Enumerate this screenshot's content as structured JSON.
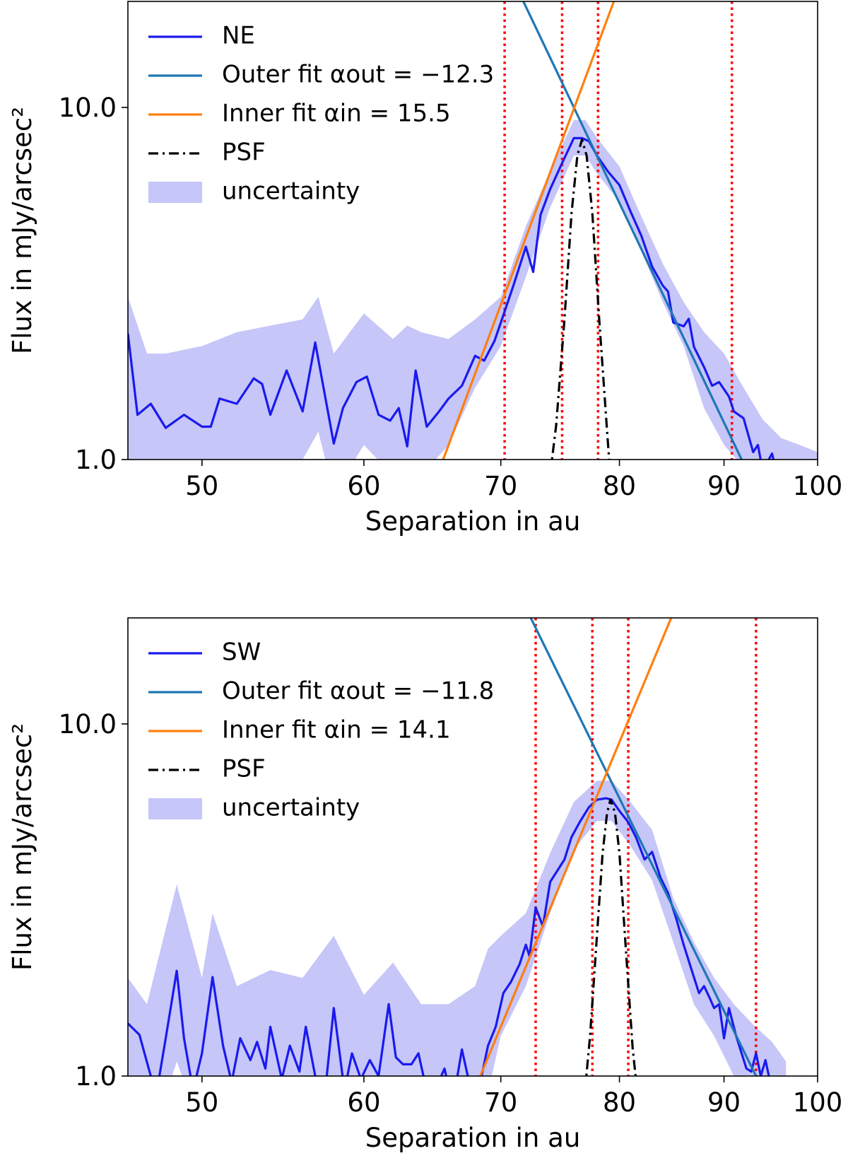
{
  "chart_data": [
    {
      "type": "line",
      "xlabel": "Separation in au",
      "ylabel": "Flux in mJy/arcsec²",
      "xscale": "log",
      "yscale": "log",
      "xlim": [
        46,
        100
      ],
      "ylim": [
        1,
        20
      ],
      "xticks": [
        50,
        60,
        70,
        80,
        90,
        100
      ],
      "yticks": [
        {
          "value": 1,
          "label": "1.0"
        },
        {
          "value": 10,
          "label": "10.0"
        }
      ],
      "legend": "upper left",
      "series": [
        {
          "name": "NE",
          "color": "#1a1aee",
          "linestyle": "solid",
          "x": [
            46.0,
            46.5,
            47.2,
            48.0,
            49.0,
            50.0,
            50.5,
            51.0,
            52.0,
            53.0,
            53.5,
            54.0,
            55.0,
            56.0,
            56.8,
            58.0,
            58.6,
            59.5,
            60.2,
            61.0,
            61.8,
            62.4,
            63.0,
            63.6,
            64.4,
            65.3,
            66.0,
            67.0,
            68.0,
            68.7,
            69.5,
            70.2,
            71.0,
            72.0,
            72.6,
            73.2,
            74.0,
            75.0,
            76.0,
            76.7,
            77.3,
            78.0,
            79.0,
            80.0,
            81.0,
            82.0,
            83.0,
            84.0,
            84.5,
            85.0,
            86.0,
            86.5,
            87.0,
            88.0,
            88.8,
            89.5,
            90.5,
            91.0,
            92.0,
            93.0,
            93.5,
            94.0,
            95.0,
            95.5,
            96.0
          ],
          "values": [
            2.28,
            1.34,
            1.44,
            1.23,
            1.34,
            1.24,
            1.24,
            1.49,
            1.44,
            1.7,
            1.64,
            1.34,
            1.79,
            1.37,
            2.15,
            1.11,
            1.4,
            1.66,
            1.72,
            1.34,
            1.29,
            1.4,
            1.09,
            1.79,
            1.24,
            1.37,
            1.49,
            1.62,
            1.97,
            1.91,
            2.17,
            2.57,
            3.12,
            4.02,
            3.41,
            4.95,
            5.86,
            6.95,
            8.18,
            8.18,
            8.02,
            7.3,
            6.56,
            6.02,
            5.07,
            4.32,
            3.53,
            3.12,
            3.0,
            2.45,
            2.39,
            2.51,
            2.09,
            1.83,
            1.62,
            1.66,
            1.51,
            1.37,
            1.31,
            1.05,
            1.1,
            0.93,
            1.04,
            0.91,
            0.99
          ]
        },
        {
          "name": "Outer fit αout = −12.3",
          "color": "#1f77b4",
          "linestyle": "solid",
          "x": [
            71.8,
            91.8
          ],
          "values": [
            20,
            1
          ]
        },
        {
          "name": "Inner fit αin = 15.5",
          "color": "#ff7f0e",
          "linestyle": "solid",
          "x": [
            65.6,
            79.5
          ],
          "values": [
            1,
            20
          ]
        },
        {
          "name": "PSF",
          "color": "#000000",
          "linestyle": "dashdot",
          "x": [
            73.8,
            74.5,
            75.2,
            75.8,
            76.3,
            76.7,
            77.1,
            77.6,
            78.2,
            78.9,
            79.3
          ],
          "values": [
            0.8,
            1.25,
            2.5,
            5.0,
            7.3,
            8.1,
            7.3,
            5.0,
            2.5,
            1.2,
            0.8
          ]
        },
        {
          "name": "uncertainty",
          "color": "#c6c6f8",
          "linestyle": "band",
          "x": [
            46,
            47,
            48,
            50,
            52,
            54,
            56,
            57,
            58,
            60,
            62,
            63,
            64,
            66,
            68,
            70,
            72,
            74,
            76,
            77,
            78,
            80,
            82,
            84,
            86,
            88,
            90,
            92,
            94,
            96,
            98,
            100
          ],
          "lower": [
            0.9,
            0.8,
            0.8,
            0.9,
            1.0,
            0.9,
            1.0,
            1.2,
            0.8,
            1.1,
            0.9,
            0.8,
            0.9,
            1.1,
            1.6,
            2.1,
            3.3,
            5.2,
            7.3,
            7.3,
            6.5,
            5.4,
            3.9,
            2.8,
            2.1,
            1.4,
            1.1,
            0.95,
            0.8,
            0.75,
            0.75,
            0.7
          ],
          "upper": [
            2.9,
            2.0,
            2.0,
            2.1,
            2.3,
            2.4,
            2.5,
            2.9,
            2.0,
            2.6,
            2.2,
            2.4,
            2.3,
            2.2,
            2.5,
            2.9,
            4.6,
            6.6,
            9.2,
            9.2,
            8.2,
            6.8,
            4.9,
            3.6,
            2.8,
            2.3,
            2.0,
            1.6,
            1.3,
            1.15,
            1.1,
            1.05
          ]
        }
      ],
      "vlines": {
        "color": "#ff0000",
        "x": [
          70.3,
          75.0,
          78.1,
          90.8
        ]
      }
    },
    {
      "type": "line",
      "xlabel": "Separation in au",
      "ylabel": "Flux in mJy/arcsec²",
      "xscale": "log",
      "yscale": "log",
      "xlim": [
        46,
        100
      ],
      "ylim": [
        1,
        20
      ],
      "xticks": [
        50,
        60,
        70,
        80,
        90,
        100
      ],
      "yticks": [
        {
          "value": 1,
          "label": "1.0"
        },
        {
          "value": 10,
          "label": "10.0"
        }
      ],
      "legend": "upper left",
      "series": [
        {
          "name": "SW",
          "color": "#1a1aee",
          "linestyle": "solid",
          "x": [
            46.0,
            46.6,
            47.2,
            47.5,
            48.0,
            48.6,
            49.0,
            49.5,
            50.0,
            50.6,
            51.2,
            51.7,
            52.2,
            52.8,
            53.2,
            53.7,
            54.0,
            54.7,
            55.2,
            55.8,
            56.2,
            56.8,
            57.4,
            58.0,
            58.7,
            59.2,
            59.8,
            60.4,
            61.0,
            61.7,
            62.2,
            62.7,
            63.3,
            63.8,
            64.5,
            65.0,
            65.7,
            66.3,
            67.0,
            67.8,
            68.5,
            69.0,
            69.6,
            70.2,
            70.8,
            71.5,
            72.0,
            72.3,
            72.8,
            73.4,
            74.0,
            74.6,
            75.2,
            75.8,
            76.5,
            77.3,
            78.0,
            78.8,
            79.3,
            80.0,
            80.8,
            81.5,
            82.3,
            83.0,
            83.8,
            84.5,
            85.3,
            86.0,
            86.8,
            87.5,
            88.0,
            88.5,
            89.0,
            89.5,
            90.0,
            90.5,
            91.2,
            91.8,
            92.3,
            92.8,
            93.3,
            93.8,
            94.3,
            94.8
          ],
          "values": [
            1.41,
            1.31,
            1.0,
            0.89,
            1.28,
            1.99,
            1.28,
            0.91,
            1.16,
            1.91,
            1.22,
            0.96,
            1.28,
            1.11,
            1.25,
            1.05,
            1.38,
            0.98,
            1.22,
            1.03,
            1.38,
            1.0,
            0.87,
            1.56,
            0.91,
            1.16,
            0.98,
            1.11,
            1.0,
            1.6,
            1.13,
            1.08,
            1.08,
            1.16,
            0.87,
            0.91,
            1.05,
            0.83,
            1.19,
            0.87,
            1.0,
            1.22,
            1.38,
            1.72,
            1.85,
            2.08,
            2.36,
            2.19,
            3.01,
            2.66,
            3.56,
            3.83,
            4.12,
            4.77,
            5.26,
            5.8,
            6.09,
            6.15,
            6.09,
            5.66,
            5.26,
            4.77,
            4.12,
            4.33,
            3.65,
            3.31,
            2.79,
            2.36,
            1.99,
            1.72,
            1.8,
            1.68,
            1.56,
            1.6,
            1.28,
            1.56,
            1.31,
            1.16,
            1.05,
            1.03,
            1.16,
            1.0,
            1.11,
            0.96
          ]
        },
        {
          "name": "Outer fit αout = −11.8",
          "color": "#1f77b4",
          "linestyle": "solid",
          "x": [
            72.4,
            93.3
          ],
          "values": [
            20,
            1
          ]
        },
        {
          "name": "Inner fit αin = 14.1",
          "color": "#ff7f0e",
          "linestyle": "solid",
          "x": [
            68.4,
            84.8
          ],
          "values": [
            1,
            20
          ]
        },
        {
          "name": "PSF",
          "color": "#000000",
          "linestyle": "dashdot",
          "x": [
            76.8,
            77.4,
            78.0,
            78.5,
            78.9,
            79.2,
            79.6,
            80.0,
            80.5,
            81.2,
            81.8
          ],
          "values": [
            0.8,
            1.3,
            2.5,
            4.3,
            5.6,
            6.1,
            5.6,
            4.3,
            2.5,
            1.2,
            0.8
          ]
        },
        {
          "name": "uncertainty",
          "color": "#c6c6f8",
          "linestyle": "band",
          "x": [
            46,
            47,
            48.6,
            50,
            50.6,
            52,
            54,
            56,
            58,
            60,
            62,
            64,
            66,
            68,
            69,
            70,
            72,
            74,
            76,
            78,
            79.3,
            81,
            83,
            85,
            87,
            89,
            91,
            93,
            95,
            96.5
          ],
          "lower": [
            0.7,
            0.6,
            1.1,
            0.7,
            1.0,
            0.7,
            0.8,
            0.7,
            0.8,
            0.7,
            0.8,
            0.6,
            0.6,
            0.7,
            0.9,
            1.3,
            1.8,
            2.9,
            4.4,
            5.3,
            5.3,
            4.5,
            3.6,
            2.4,
            1.6,
            1.3,
            1.0,
            0.8,
            0.75,
            0.7
          ],
          "upper": [
            1.9,
            1.6,
            3.5,
            1.9,
            2.9,
            1.8,
            2.0,
            1.9,
            2.5,
            1.7,
            2.1,
            1.6,
            1.6,
            1.8,
            2.3,
            2.5,
            2.9,
            4.3,
            6.0,
            6.9,
            6.9,
            6.0,
            5.0,
            3.2,
            2.4,
            1.9,
            1.6,
            1.4,
            1.25,
            1.1
          ]
        }
      ],
      "vlines": {
        "color": "#ff0000",
        "x": [
          72.8,
          77.6,
          80.8,
          93.3
        ]
      }
    }
  ]
}
